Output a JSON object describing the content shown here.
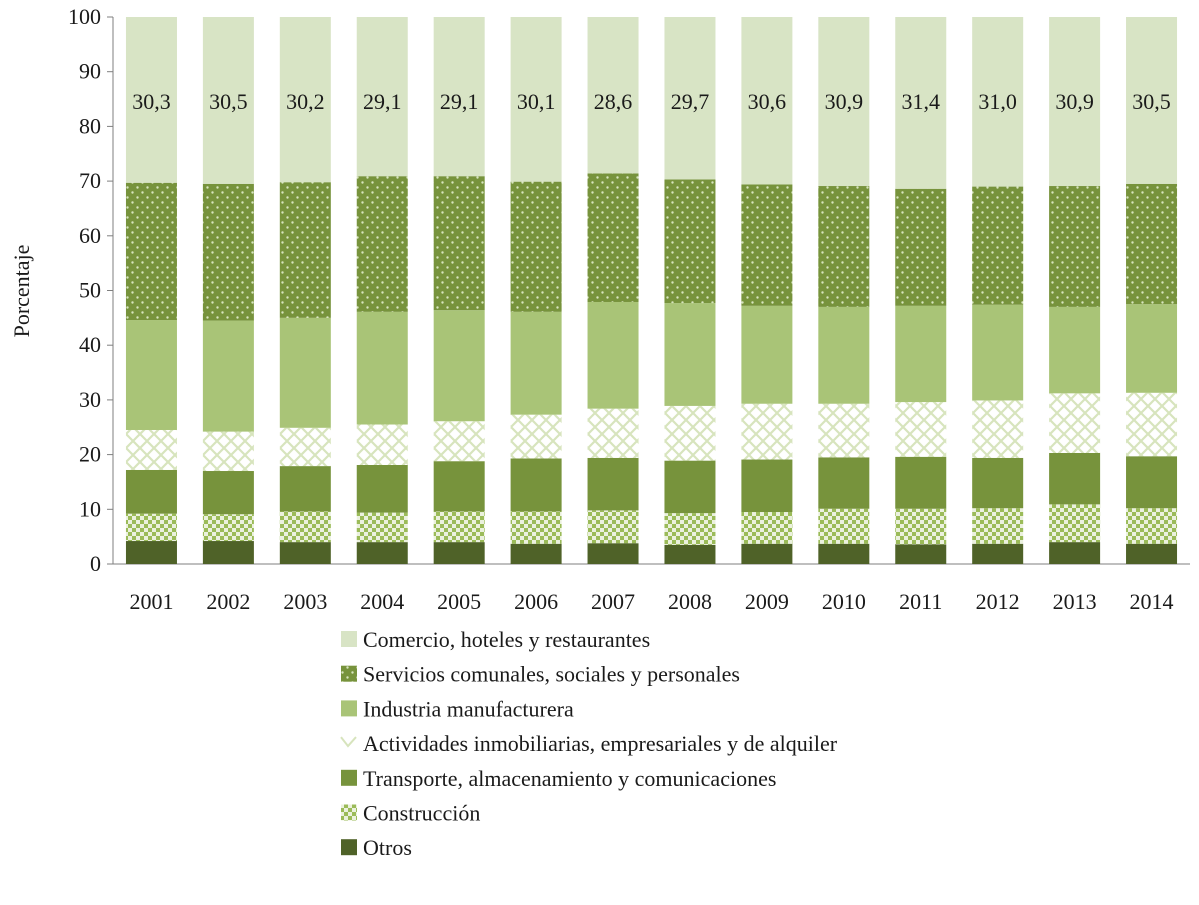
{
  "chart_data": {
    "type": "bar",
    "stacked": true,
    "title": "",
    "xlabel": "",
    "ylabel": "Porcentaje",
    "ylim": [
      0,
      100
    ],
    "yticks": [
      0,
      10,
      20,
      30,
      40,
      50,
      60,
      70,
      80,
      90,
      100
    ],
    "grid": false,
    "legend_position": "bottom",
    "categories": [
      "2001",
      "2002",
      "2003",
      "2004",
      "2005",
      "2006",
      "2007",
      "2008",
      "2009",
      "2010",
      "2011",
      "2012",
      "2013",
      "2014"
    ],
    "series": [
      {
        "name": "Otros",
        "color": "#4f6228",
        "pattern": "solid",
        "values": [
          4.2,
          4.2,
          4.0,
          4.0,
          4.0,
          3.7,
          3.8,
          3.5,
          3.7,
          3.7,
          3.6,
          3.7,
          4.0,
          3.7
        ]
      },
      {
        "name": "Construcción",
        "color": "#9bbb59",
        "pattern": "checker",
        "values": [
          5.0,
          4.9,
          5.6,
          5.4,
          5.6,
          5.9,
          6.0,
          5.8,
          5.8,
          6.4,
          6.5,
          6.5,
          6.9,
          6.5
        ]
      },
      {
        "name": "Transporte, almacenamiento y comunicaciones",
        "color": "#77933c",
        "pattern": "solid",
        "values": [
          8.0,
          7.9,
          8.3,
          8.7,
          9.2,
          9.7,
          9.6,
          9.6,
          9.6,
          9.4,
          9.5,
          9.2,
          9.4,
          9.5
        ]
      },
      {
        "name": "Actividades inmobiliarias, empresariales y de alquiler",
        "color": "#d7e4bd",
        "pattern": "lattice",
        "values": [
          7.3,
          7.2,
          7.0,
          7.4,
          7.3,
          8.0,
          9.0,
          10.0,
          10.2,
          9.8,
          10.0,
          10.5,
          10.9,
          11.6
        ]
      },
      {
        "name": "Industria manufacturera",
        "color": "#a9c477",
        "pattern": "solid",
        "values": [
          20.1,
          20.3,
          20.1,
          20.6,
          20.3,
          18.8,
          19.5,
          18.8,
          17.9,
          17.7,
          17.6,
          17.5,
          15.8,
          16.2
        ]
      },
      {
        "name": "Servicios comunales, sociales y personales",
        "color": "#77933c",
        "pattern": "dots",
        "values": [
          25.1,
          25.0,
          24.8,
          24.8,
          24.5,
          23.8,
          23.5,
          22.6,
          22.2,
          22.1,
          21.4,
          21.6,
          22.1,
          22.0
        ]
      },
      {
        "name": "Comercio, hoteles y restaurantes",
        "color": "#d8e4c5",
        "pattern": "solid",
        "values": [
          30.3,
          30.5,
          30.2,
          29.1,
          29.1,
          30.1,
          28.6,
          29.7,
          30.6,
          30.9,
          31.4,
          31.0,
          30.9,
          30.5
        ],
        "data_labels": [
          "30,3",
          "30,5",
          "30,2",
          "29,1",
          "29,1",
          "30,1",
          "28,6",
          "29,7",
          "30,6",
          "30,9",
          "31,4",
          "31,0",
          "30,9",
          "30,5"
        ]
      }
    ],
    "legend_order": [
      "Comercio, hoteles y restaurantes",
      "Servicios comunales, sociales y personales",
      "Industria manufacturera",
      "Actividades inmobiliarias, empresariales y de alquiler",
      "Transporte, almacenamiento y comunicaciones",
      "Construcción",
      "Otros"
    ]
  }
}
